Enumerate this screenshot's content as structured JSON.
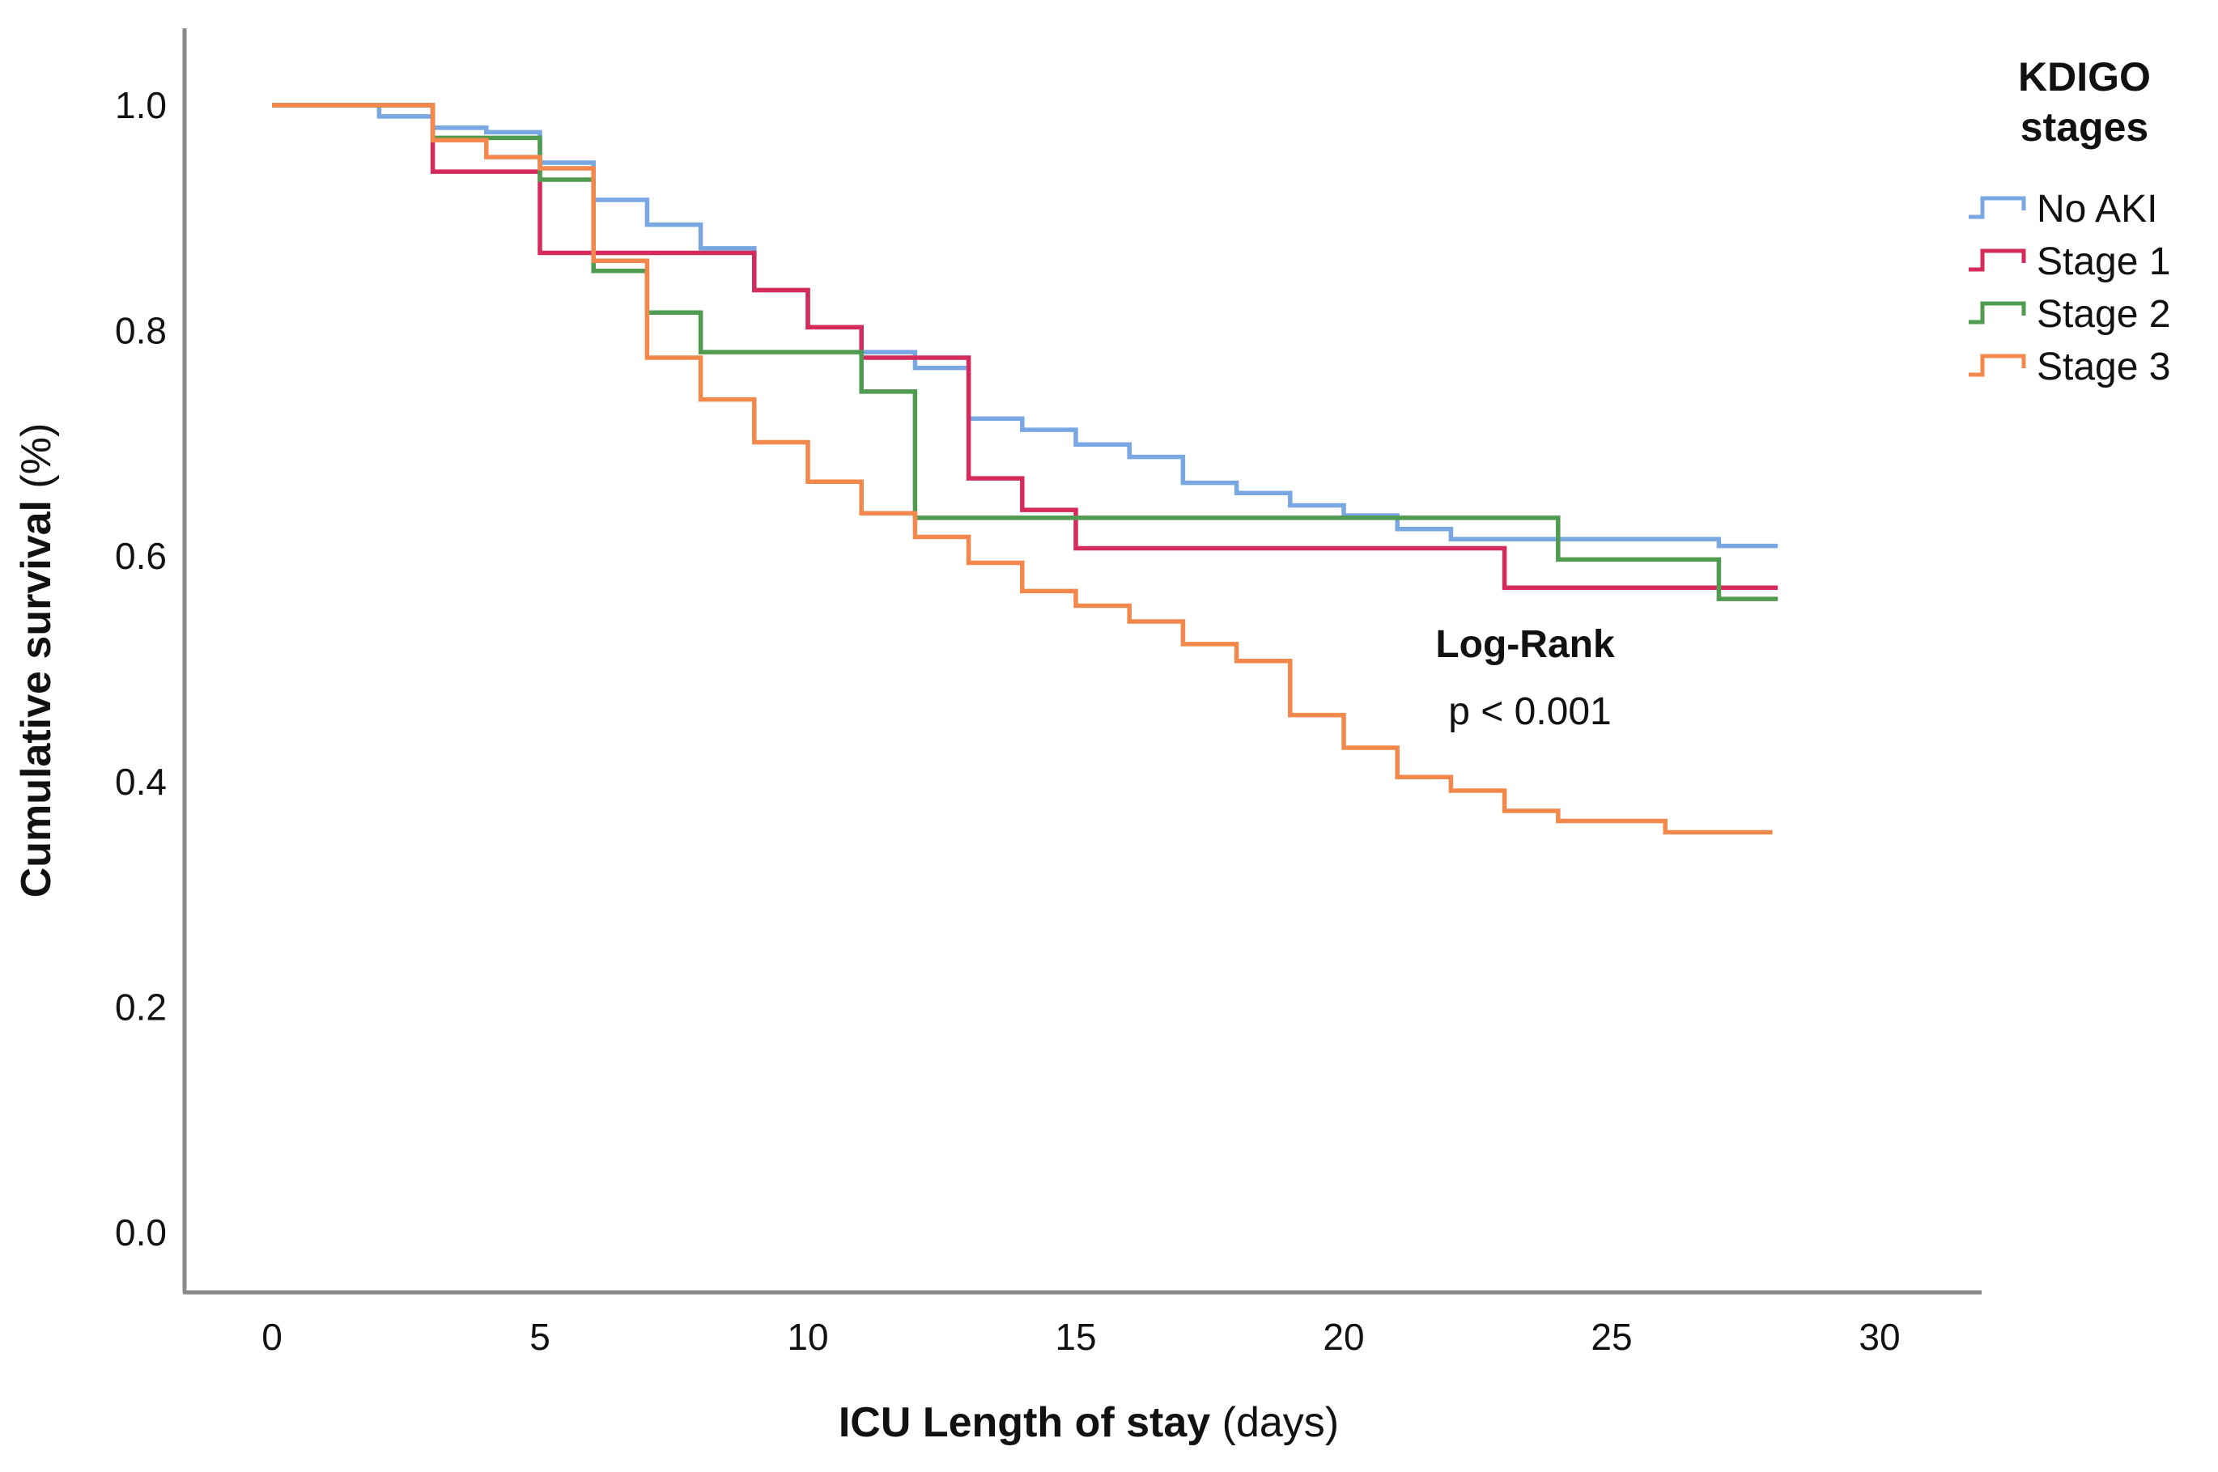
{
  "chart_data": {
    "type": "line",
    "subtype": "kaplan-meier-step",
    "title": "",
    "xlabel": "ICU Length of stay (days)",
    "xlabel_bold": "ICU Length of stay",
    "xlabel_regular": " (days)",
    "ylabel": "Cumulative survival (%)",
    "ylabel_bold": "Cumulative survival",
    "ylabel_regular": " (%)",
    "xlim": [
      0,
      32
    ],
    "ylim": [
      0.0,
      1.05
    ],
    "grid": false,
    "x_axis": {
      "ticks": [
        0,
        5,
        10,
        15,
        20,
        25,
        30
      ]
    },
    "y_axis": {
      "ticks": [
        1.0,
        0.8,
        0.6,
        0.4,
        0.2,
        0.0
      ],
      "tick_labels": [
        "1.0",
        "0.8",
        "0.6",
        "0.4",
        "0.2",
        "0.0"
      ]
    },
    "axis_color": "#8a8a8a",
    "annotation": {
      "line1": "Log-Rank",
      "line2": "p < 0.001"
    },
    "legend": {
      "position": "top-right-outside",
      "title_line1": "KDIGO",
      "title_line2": "stages",
      "entries": [
        {
          "label": "No AKI",
          "color": "#79a7e2"
        },
        {
          "label": "Stage 1",
          "color": "#d52b5c"
        },
        {
          "label": "Stage 2",
          "color": "#4f9b4f"
        },
        {
          "label": "Stage 3",
          "color": "#f2884b"
        }
      ]
    },
    "series": [
      {
        "name": "No AKI",
        "color": "#79a7e2",
        "start": [
          0,
          1.0
        ],
        "end_day": 28.1,
        "steps": [
          [
            2,
            0.99
          ],
          [
            3,
            0.98
          ],
          [
            4,
            0.976
          ],
          [
            5,
            0.949
          ],
          [
            6,
            0.916
          ],
          [
            7,
            0.894
          ],
          [
            8,
            0.873
          ],
          [
            9,
            0.836
          ],
          [
            10,
            0.803
          ],
          [
            11,
            0.781
          ],
          [
            12,
            0.767
          ],
          [
            13,
            0.722
          ],
          [
            14,
            0.712
          ],
          [
            15,
            0.699
          ],
          [
            16,
            0.688
          ],
          [
            17,
            0.665
          ],
          [
            18,
            0.656
          ],
          [
            19,
            0.645
          ],
          [
            20,
            0.636
          ],
          [
            21,
            0.624
          ],
          [
            22,
            0.615
          ],
          [
            27,
            0.609
          ]
        ]
      },
      {
        "name": "Stage 1",
        "color": "#d52b5c",
        "start": [
          0,
          1.0
        ],
        "end_day": 28.1,
        "steps": [
          [
            3,
            0.941
          ],
          [
            5,
            0.869
          ],
          [
            9,
            0.836
          ],
          [
            10,
            0.803
          ],
          [
            11,
            0.776
          ],
          [
            13,
            0.669
          ],
          [
            14,
            0.641
          ],
          [
            15,
            0.607
          ],
          [
            23,
            0.572
          ]
        ]
      },
      {
        "name": "Stage 2",
        "color": "#4f9b4f",
        "start": [
          0,
          1.0
        ],
        "end_day": 28.1,
        "steps": [
          [
            3,
            0.971
          ],
          [
            5,
            0.934
          ],
          [
            6,
            0.853
          ],
          [
            7,
            0.816
          ],
          [
            8,
            0.781
          ],
          [
            11,
            0.746
          ],
          [
            12,
            0.634
          ],
          [
            24,
            0.597
          ],
          [
            27,
            0.562
          ]
        ]
      },
      {
        "name": "Stage 3",
        "color": "#f2884b",
        "start": [
          0,
          1.0
        ],
        "end_day": 28.0,
        "steps": [
          [
            3,
            0.969
          ],
          [
            4,
            0.954
          ],
          [
            5,
            0.944
          ],
          [
            6,
            0.862
          ],
          [
            7,
            0.776
          ],
          [
            8,
            0.739
          ],
          [
            9,
            0.701
          ],
          [
            10,
            0.666
          ],
          [
            11,
            0.638
          ],
          [
            12,
            0.617
          ],
          [
            13,
            0.594
          ],
          [
            14,
            0.569
          ],
          [
            15,
            0.556
          ],
          [
            16,
            0.542
          ],
          [
            17,
            0.522
          ],
          [
            18,
            0.507
          ],
          [
            19,
            0.459
          ],
          [
            20,
            0.43
          ],
          [
            21,
            0.404
          ],
          [
            22,
            0.392
          ],
          [
            23,
            0.374
          ],
          [
            24,
            0.365
          ],
          [
            26,
            0.355
          ]
        ]
      }
    ]
  }
}
